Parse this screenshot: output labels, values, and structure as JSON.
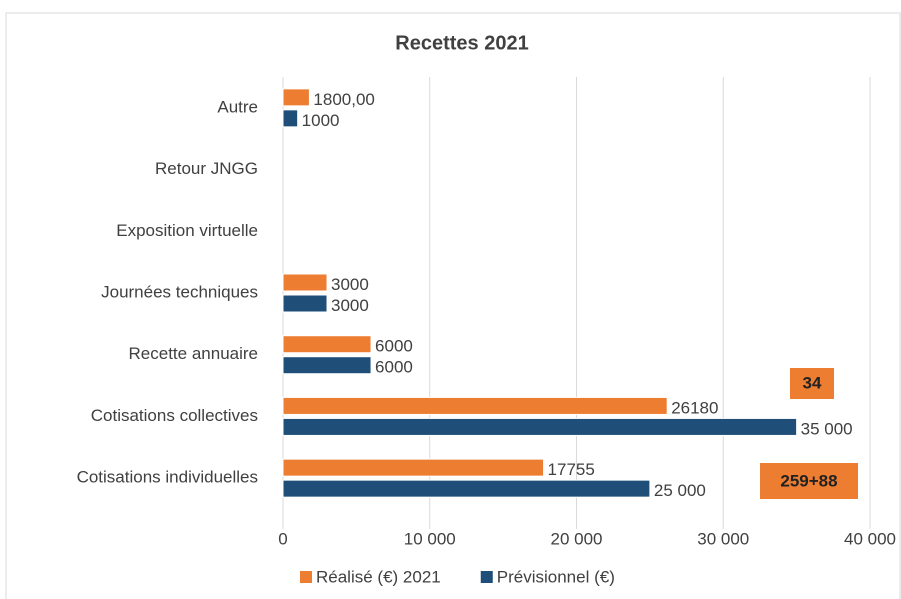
{
  "chart_data": {
    "type": "bar",
    "orientation": "horizontal",
    "title": "Recettes 2021",
    "categories": [
      "Cotisations individuelles",
      "Cotisations collectives",
      "Recette annuaire",
      "Journées techniques",
      "Exposition virtuelle",
      "Retour JNGG",
      "Autre"
    ],
    "series": [
      {
        "name": "Réalisé (€)  2021",
        "color": "#ed7d31",
        "values": [
          17755,
          26180,
          6000,
          3000,
          null,
          null,
          1800
        ],
        "value_labels": [
          "17755",
          "26180",
          "6000",
          "3000",
          null,
          null,
          "1800,00"
        ]
      },
      {
        "name": "Prévisionnel (€)",
        "color": "#1f4e79",
        "values": [
          25000,
          35000,
          6000,
          3000,
          null,
          null,
          1000
        ],
        "value_labels": [
          "25 000",
          "35 000",
          "6000",
          "3000",
          null,
          null,
          "1000"
        ]
      }
    ],
    "xlim": [
      0,
      40000
    ],
    "xticks": [
      0,
      {
        "value": 10000,
        "label": "10 000"
      },
      {
        "value": 20000,
        "label": "20 000"
      },
      {
        "value": 30000,
        "label": "30 000"
      },
      {
        "value": 40000,
        "label": "40 000"
      }
    ],
    "grid": true,
    "legend": "bottom",
    "annotations": [
      "34",
      "259+88"
    ]
  }
}
